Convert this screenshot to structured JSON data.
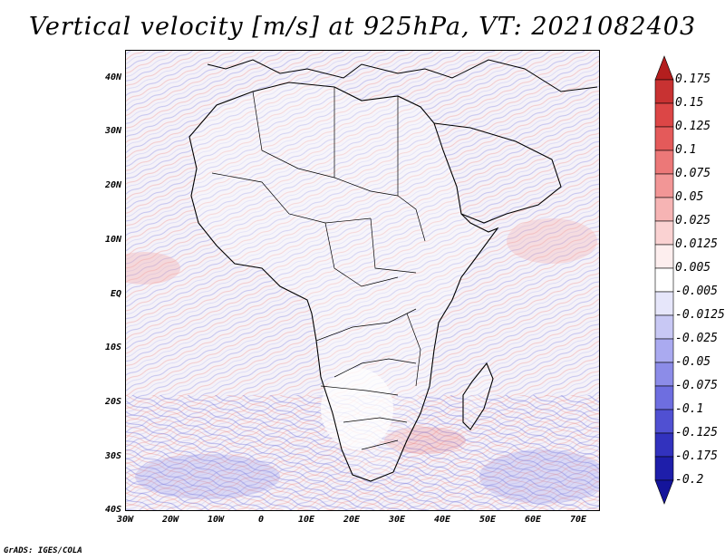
{
  "title": "Vertical velocity [m/s] at 925hPa, VT: 2021082403",
  "footer": "GrADS: IGES/COLA",
  "map": {
    "projection": "lat-lon",
    "lon_range": [
      -30,
      75
    ],
    "lat_range": [
      -40,
      45
    ],
    "lat_labels": [
      "40N",
      "30N",
      "20N",
      "10N",
      "EQ",
      "10S",
      "20S",
      "30S",
      "40S"
    ],
    "lat_values": [
      40,
      30,
      20,
      10,
      0,
      -10,
      -20,
      -30,
      -40
    ],
    "lon_labels": [
      "30W",
      "20W",
      "10W",
      "0",
      "10E",
      "20E",
      "30E",
      "40E",
      "50E",
      "60E",
      "70E"
    ],
    "lon_values": [
      -30,
      -20,
      -10,
      0,
      10,
      20,
      30,
      40,
      50,
      60,
      70
    ]
  },
  "colorbar": {
    "labels": [
      "0.175",
      "0.15",
      "0.125",
      "0.1",
      "0.075",
      "0.05",
      "0.025",
      "0.0125",
      "0.005",
      "-0.005",
      "-0.0125",
      "-0.025",
      "-0.05",
      "-0.075",
      "-0.1",
      "-0.125",
      "-0.175",
      "-0.2"
    ],
    "colors": [
      "#b41e1e",
      "#c83232",
      "#dc4646",
      "#e45a5a",
      "#ec7878",
      "#f29696",
      "#f6b4b4",
      "#fad2d2",
      "#fdeeee",
      "#ffffff",
      "#e6e6fa",
      "#c8c8f4",
      "#aaaaf0",
      "#8c8ce8",
      "#6e6ee0",
      "#5050d2",
      "#3232be",
      "#1e1eaa",
      "#14149b"
    ]
  }
}
